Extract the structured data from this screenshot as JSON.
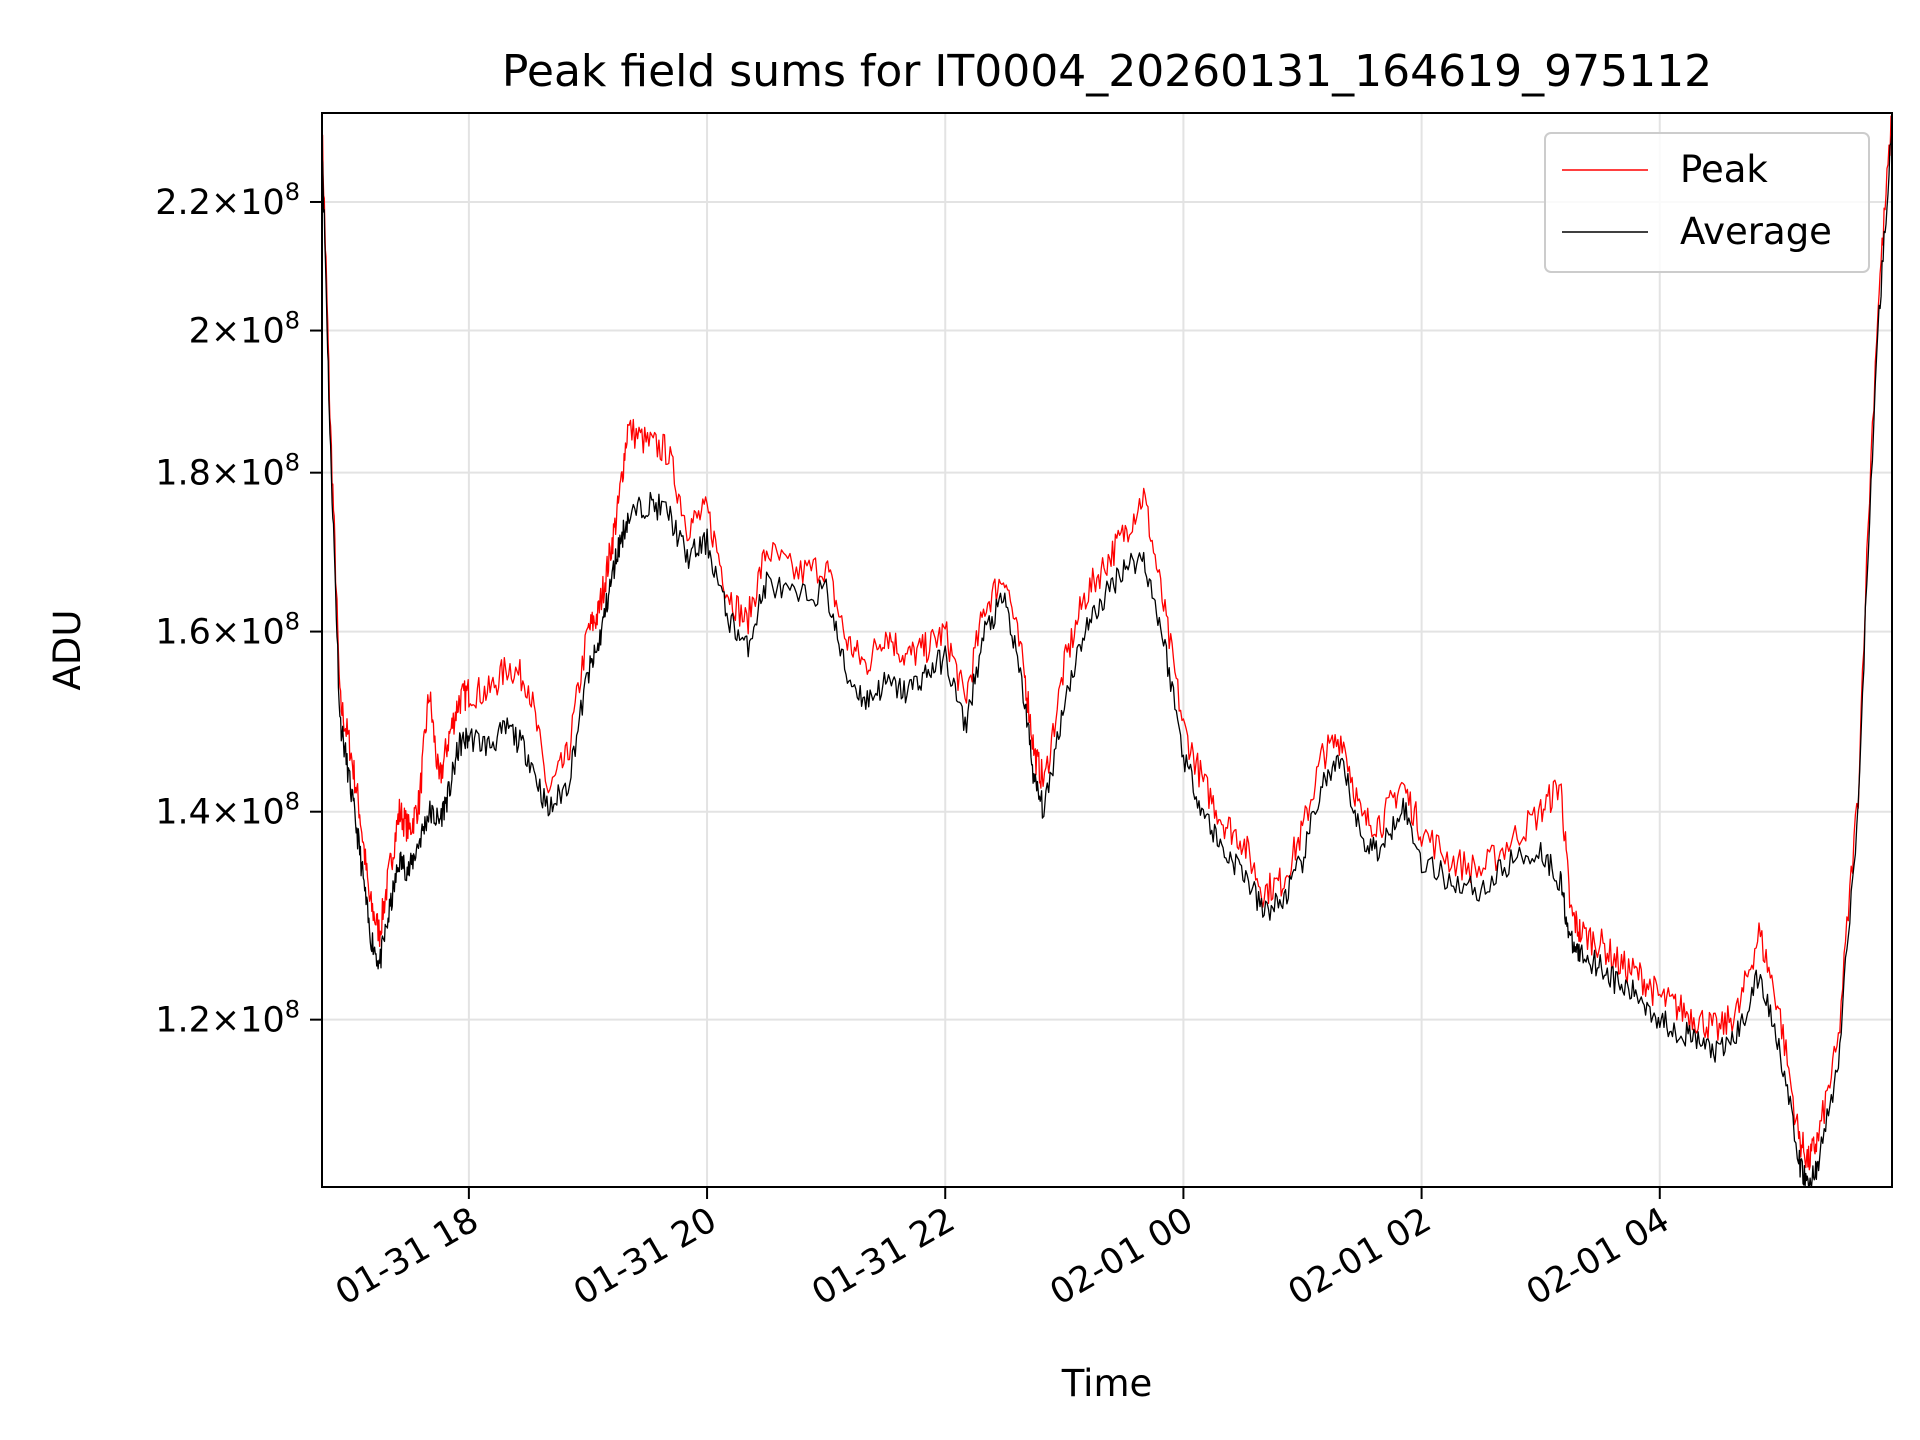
{
  "chart_data": {
    "type": "line",
    "title": "Peak field sums for IT0004_20260131_164619_975112",
    "xlabel": "Time",
    "ylabel": "ADU",
    "yscale": "log",
    "grid": true,
    "legend_position": "top-right",
    "x_range": [
      "2026-01-31 16:46",
      "2026-02-01 05:57"
    ],
    "ylim": [
      106000000,
      235000000
    ],
    "x_ticks": [
      {
        "t": "2026-01-31 18:00",
        "label": "01-31 18"
      },
      {
        "t": "2026-01-31 20:00",
        "label": "01-31 20"
      },
      {
        "t": "2026-01-31 22:00",
        "label": "01-31 22"
      },
      {
        "t": "2026-02-01 00:00",
        "label": "02-01 00"
      },
      {
        "t": "2026-02-01 02:00",
        "label": "02-01 02"
      },
      {
        "t": "2026-02-01 04:00",
        "label": "02-01 04"
      }
    ],
    "y_ticks": [
      {
        "value": 120000000,
        "mant": "1.2",
        "exp": "8"
      },
      {
        "value": 140000000,
        "mant": "1.4",
        "exp": "8"
      },
      {
        "value": 160000000,
        "mant": "1.6",
        "exp": "8"
      },
      {
        "value": 180000000,
        "mant": "1.8",
        "exp": "8"
      },
      {
        "value": 200000000,
        "mant": "2",
        "exp": "8"
      },
      {
        "value": 220000000,
        "mant": "2.2",
        "exp": "8"
      }
    ],
    "series": [
      {
        "name": "Peak",
        "color": "#ff0000"
      },
      {
        "name": "Average",
        "color": "#000000"
      }
    ],
    "x": [
      "2026-01-31 16:46",
      "2026-01-31 16:50",
      "2026-01-31 16:55",
      "2026-01-31 17:00",
      "2026-01-31 17:05",
      "2026-01-31 17:10",
      "2026-01-31 17:15",
      "2026-01-31 17:20",
      "2026-01-31 17:25",
      "2026-01-31 17:30",
      "2026-01-31 17:35",
      "2026-01-31 17:40",
      "2026-01-31 17:45",
      "2026-01-31 17:50",
      "2026-01-31 17:55",
      "2026-01-31 18:00",
      "2026-01-31 18:10",
      "2026-01-31 18:20",
      "2026-01-31 18:30",
      "2026-01-31 18:40",
      "2026-01-31 18:50",
      "2026-01-31 19:00",
      "2026-01-31 19:05",
      "2026-01-31 19:10",
      "2026-01-31 19:15",
      "2026-01-31 19:20",
      "2026-01-31 19:30",
      "2026-01-31 19:40",
      "2026-01-31 19:50",
      "2026-01-31 20:00",
      "2026-01-31 20:10",
      "2026-01-31 20:20",
      "2026-01-31 20:30",
      "2026-01-31 20:45",
      "2026-01-31 21:00",
      "2026-01-31 21:10",
      "2026-01-31 21:20",
      "2026-01-31 21:30",
      "2026-01-31 21:40",
      "2026-01-31 21:50",
      "2026-01-31 22:00",
      "2026-01-31 22:10",
      "2026-01-31 22:20",
      "2026-01-31 22:30",
      "2026-01-31 22:40",
      "2026-01-31 22:45",
      "2026-01-31 22:50",
      "2026-01-31 23:00",
      "2026-01-31 23:10",
      "2026-01-31 23:20",
      "2026-01-31 23:30",
      "2026-01-31 23:40",
      "2026-01-31 23:50",
      "2026-02-01 00:00",
      "2026-02-01 00:10",
      "2026-02-01 00:20",
      "2026-02-01 00:30",
      "2026-02-01 00:40",
      "2026-02-01 00:50",
      "2026-02-01 01:00",
      "2026-02-01 01:10",
      "2026-02-01 01:20",
      "2026-02-01 01:30",
      "2026-02-01 01:40",
      "2026-02-01 01:50",
      "2026-02-01 02:00",
      "2026-02-01 02:15",
      "2026-02-01 02:30",
      "2026-02-01 02:45",
      "2026-02-01 03:00",
      "2026-02-01 03:10",
      "2026-02-01 03:15",
      "2026-02-01 03:20",
      "2026-02-01 03:30",
      "2026-02-01 03:40",
      "2026-02-01 03:50",
      "2026-02-01 04:00",
      "2026-02-01 04:10",
      "2026-02-01 04:20",
      "2026-02-01 04:30",
      "2026-02-01 04:40",
      "2026-02-01 04:50",
      "2026-02-01 05:00",
      "2026-02-01 05:10",
      "2026-02-01 05:15",
      "2026-02-01 05:20",
      "2026-02-01 05:30",
      "2026-02-01 05:40",
      "2026-02-01 05:50",
      "2026-02-01 05:57"
    ],
    "avg": [
      230000000,
      185000000,
      150000000,
      143000000,
      136000000,
      128000000,
      125000000,
      130000000,
      135000000,
      134000000,
      137000000,
      140000000,
      139000000,
      142000000,
      147000000,
      148000000,
      147000000,
      149000000,
      146000000,
      140000000,
      143000000,
      155000000,
      158000000,
      164000000,
      170000000,
      174000000,
      176000000,
      175000000,
      169000000,
      171000000,
      162000000,
      158000000,
      166000000,
      164000000,
      165000000,
      155000000,
      152000000,
      154000000,
      153000000,
      155000000,
      157000000,
      149000000,
      160000000,
      164000000,
      152000000,
      143000000,
      140000000,
      152000000,
      160000000,
      164000000,
      168000000,
      169000000,
      159000000,
      146000000,
      140000000,
      136000000,
      134000000,
      130000000,
      131000000,
      135000000,
      143000000,
      145000000,
      137000000,
      136000000,
      141000000,
      135000000,
      133000000,
      132000000,
      135000000,
      136000000,
      133000000,
      127000000,
      126000000,
      125000000,
      123000000,
      122000000,
      120000000,
      119000000,
      118000000,
      117000000,
      119000000,
      124000000,
      118000000,
      108000000,
      106000000,
      108000000,
      116000000,
      140000000,
      200000000,
      232000000
    ],
    "peak": [
      232000000,
      188000000,
      152000000,
      147000000,
      140000000,
      131000000,
      128000000,
      134000000,
      140000000,
      138000000,
      141000000,
      153000000,
      143000000,
      148000000,
      152000000,
      153000000,
      153000000,
      156000000,
      154000000,
      142000000,
      146000000,
      160000000,
      162000000,
      168000000,
      175000000,
      186000000,
      184000000,
      183000000,
      173000000,
      175000000,
      165000000,
      161000000,
      170000000,
      167000000,
      168000000,
      159000000,
      156000000,
      160000000,
      157000000,
      158000000,
      160000000,
      152000000,
      163000000,
      167000000,
      155000000,
      146000000,
      143000000,
      156000000,
      164000000,
      168000000,
      172000000,
      177000000,
      163000000,
      149000000,
      143000000,
      139000000,
      137000000,
      132000000,
      133000000,
      138000000,
      146000000,
      148000000,
      139000000,
      139000000,
      143000000,
      138000000,
      135000000,
      134000000,
      137000000,
      140000000,
      143000000,
      130000000,
      128000000,
      127000000,
      125000000,
      124000000,
      122000000,
      121000000,
      120000000,
      119000000,
      121000000,
      128000000,
      121000000,
      110000000,
      108000000,
      110000000,
      118000000,
      142000000,
      204000000,
      234000000
    ]
  }
}
